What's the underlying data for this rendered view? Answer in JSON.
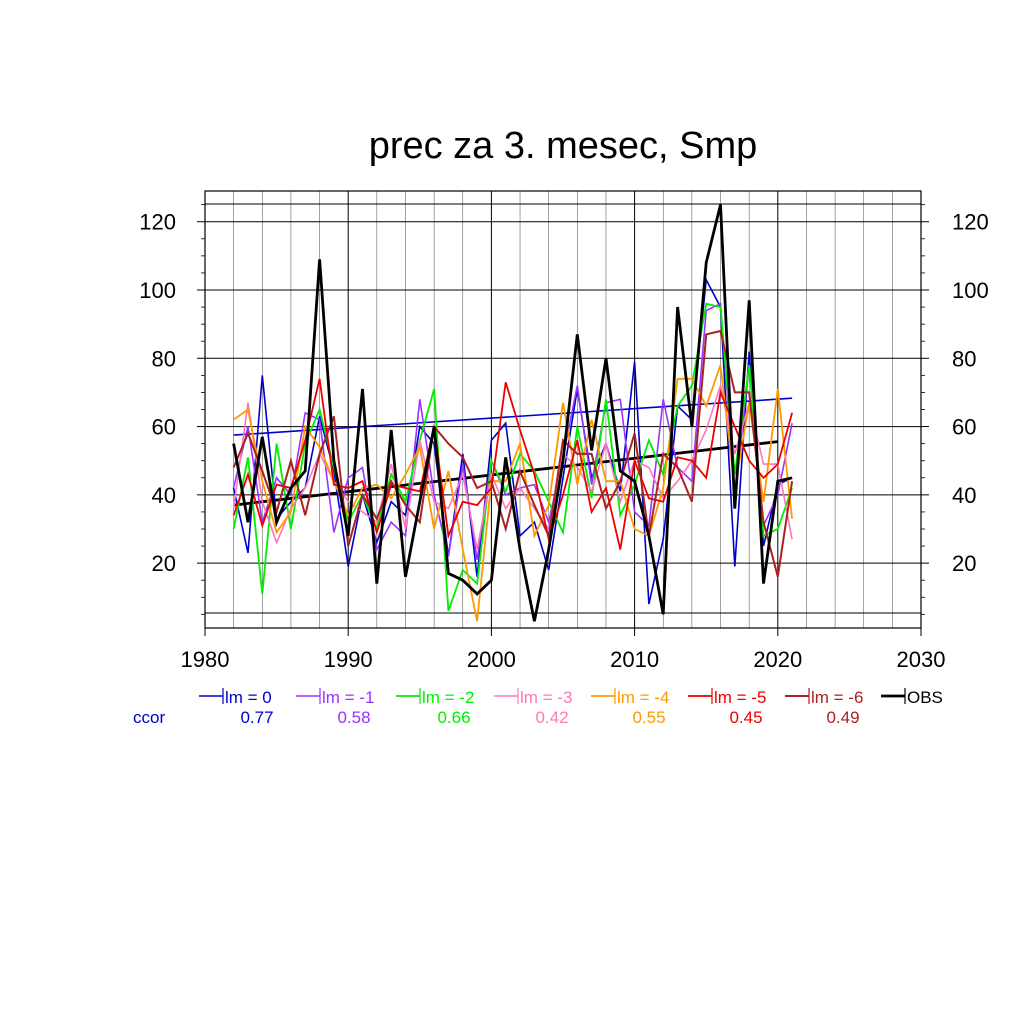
{
  "chart_data": {
    "type": "line",
    "title": "prec za 3. mesec, Smp",
    "xlabel": "",
    "ylabel": "",
    "xlim": [
      1980,
      2030
    ],
    "ylim": [
      1,
      129
    ],
    "x_ticks": [
      1980,
      1990,
      2000,
      2010,
      2020,
      2030
    ],
    "y_ticks": [
      20,
      40,
      60,
      80,
      100,
      120
    ],
    "x_tick_labels": [
      "1980",
      "1990",
      "2000",
      "2010",
      "2020",
      "2030"
    ],
    "y_tick_labels": [
      "20",
      "40",
      "60",
      "80",
      "100",
      "120"
    ],
    "grid": true,
    "legend_position": "bottom",
    "ccor_label": "ccor",
    "x": [
      1982,
      1983,
      1984,
      1985,
      1986,
      1987,
      1988,
      1989,
      1990,
      1991,
      1992,
      1993,
      1994,
      1995,
      1996,
      1997,
      1998,
      1999,
      2000,
      2001,
      2002,
      2003,
      2004,
      2005,
      2006,
      2007,
      2008,
      2009,
      2010,
      2011,
      2012,
      2013,
      2014,
      2015,
      2016,
      2017,
      2018,
      2019,
      2020,
      2021
    ],
    "series": [
      {
        "name": "lm = 0",
        "ccor": "0.77",
        "color": "#0000cc",
        "width": 1.6,
        "values": [
          42,
          23,
          75,
          33,
          38,
          42,
          63,
          47,
          19,
          40,
          26,
          38,
          34,
          60,
          55,
          22,
          52,
          16,
          56,
          61,
          28,
          32,
          18,
          45,
          71,
          45,
          55,
          41,
          79,
          8,
          27,
          66,
          62,
          103,
          95,
          19,
          82,
          25,
          43,
          45
        ]
      },
      {
        "name": "lm = -1",
        "ccor": "0.58",
        "color": "#9933ff",
        "width": 1.6,
        "values": [
          42,
          60,
          32,
          45,
          40,
          64,
          62,
          29,
          45,
          48,
          24,
          32,
          28,
          68,
          40,
          22,
          49,
          21,
          50,
          40,
          42,
          43,
          32,
          51,
          72,
          43,
          67,
          68,
          35,
          31,
          68,
          48,
          44,
          94,
          96,
          40,
          78,
          31,
          40,
          61
        ]
      },
      {
        "name": "lm = -2",
        "ccor": "0.66",
        "color": "#00ee00",
        "width": 1.8,
        "values": [
          30,
          51,
          11,
          55,
          30,
          55,
          65,
          48,
          32,
          40,
          30,
          46,
          38,
          56,
          71,
          6,
          18,
          14,
          50,
          41,
          52,
          47,
          38,
          29,
          60,
          39,
          68,
          34,
          43,
          56,
          46,
          66,
          72,
          96,
          95,
          46,
          78,
          28,
          30,
          42
        ]
      },
      {
        "name": "lm = -3",
        "ccor": "0.42",
        "color": "#ff77bb",
        "width": 1.6,
        "values": [
          36,
          67,
          38,
          26,
          36,
          42,
          52,
          44,
          38,
          35,
          32,
          49,
          30,
          56,
          38,
          36,
          46,
          24,
          46,
          36,
          42,
          36,
          30,
          52,
          48,
          41,
          55,
          38,
          50,
          48,
          39,
          44,
          50,
          59,
          72,
          52,
          67,
          49,
          49,
          27
        ]
      },
      {
        "name": "lm = -4",
        "ccor": "0.55",
        "color": "#ff9900",
        "width": 1.8,
        "values": [
          62,
          65,
          44,
          29,
          35,
          60,
          54,
          44,
          34,
          42,
          43,
          39,
          46,
          54,
          30,
          47,
          24,
          3,
          44,
          44,
          55,
          28,
          37,
          67,
          43,
          62,
          44,
          44,
          30,
          28,
          42,
          74,
          74,
          66,
          78,
          42,
          67,
          38,
          71,
          33
        ]
      },
      {
        "name": "lm = -5",
        "ccor": "0.45",
        "color": "#ee0000",
        "width": 1.8,
        "values": [
          34,
          46,
          31,
          43,
          42,
          56,
          74,
          43,
          42,
          44,
          29,
          43,
          42,
          41,
          60,
          28,
          38,
          37,
          42,
          73,
          59,
          46,
          27,
          40,
          56,
          35,
          42,
          24,
          50,
          39,
          38,
          51,
          50,
          45,
          70,
          60,
          50,
          45,
          49,
          64
        ]
      },
      {
        "name": "lm = -6",
        "ccor": "0.49",
        "color": "#aa2222",
        "width": 2.0,
        "values": [
          48,
          58,
          47,
          35,
          50,
          34,
          52,
          63,
          25,
          40,
          33,
          44,
          37,
          32,
          60,
          55,
          51,
          42,
          44,
          30,
          47,
          37,
          28,
          56,
          52,
          52,
          36,
          44,
          58,
          28,
          52,
          48,
          38,
          87,
          88,
          70,
          70,
          32,
          16,
          44
        ]
      },
      {
        "name": "OBS",
        "ccor": "",
        "color": "#000000",
        "width": 2.8,
        "values": [
          55,
          32,
          57,
          32,
          42,
          47,
          109,
          50,
          28,
          71,
          14,
          59,
          16,
          38,
          60,
          17,
          15,
          11,
          15,
          51,
          24,
          3,
          24,
          50,
          87,
          53,
          80,
          47,
          44,
          28,
          5,
          95,
          60,
          108,
          125,
          36,
          97,
          14,
          44,
          45
        ]
      }
    ],
    "trends": [
      {
        "series": "lm = 0",
        "color": "#0000cc",
        "width": 1.6,
        "x": [
          1982,
          2021
        ],
        "y": [
          57.5,
          68.3
        ]
      },
      {
        "series": "OBS",
        "color": "#000000",
        "width": 2.8,
        "x": [
          1982,
          2020
        ],
        "y": [
          37,
          55.6
        ]
      }
    ]
  }
}
